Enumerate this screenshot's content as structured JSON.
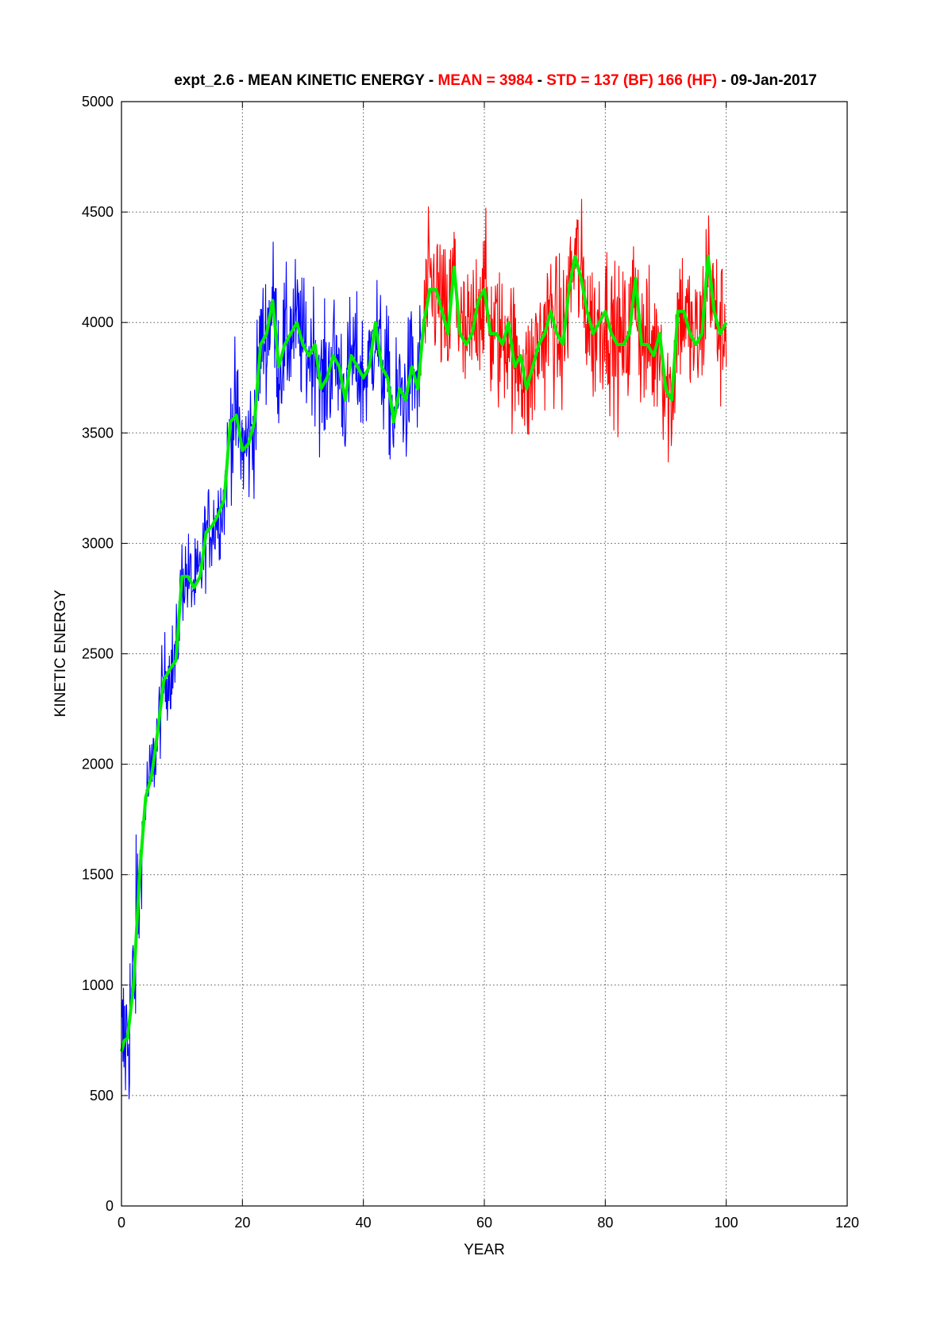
{
  "chart_data": {
    "type": "line",
    "title_parts": [
      {
        "text": "expt_2.6 - MEAN KINETIC ENERGY - ",
        "color": "#000000"
      },
      {
        "text": "MEAN =  3984",
        "color": "#ff0000"
      },
      {
        "text": " - ",
        "color": "#000000"
      },
      {
        "text": "STD =  137 (BF)  166 (HF)",
        "color": "#ff0000"
      },
      {
        "text": " - 09-Jan-2017",
        "color": "#000000"
      }
    ],
    "xlabel": "YEAR",
    "ylabel": "KINETIC ENERGY",
    "xlim": [
      0,
      120
    ],
    "ylim": [
      0,
      5000
    ],
    "xticks": [
      0,
      20,
      40,
      60,
      80,
      100,
      120
    ],
    "yticks": [
      0,
      500,
      1000,
      1500,
      2000,
      2500,
      3000,
      3500,
      4000,
      4500,
      5000
    ],
    "grid": true,
    "colors": {
      "spinup": "#0000ff",
      "analysis": "#ff0000",
      "smoothed": "#00ee00"
    },
    "series": [
      {
        "color": "#00ee00",
        "role": "smoothed",
        "x": [
          0,
          0.5,
          1,
          2,
          3,
          4,
          5,
          6,
          7,
          8,
          9,
          10,
          11,
          12,
          13,
          14,
          15,
          16,
          17,
          18,
          19,
          20,
          21,
          22,
          23,
          24,
          25,
          26,
          27,
          28,
          29,
          30,
          31,
          32,
          33,
          34,
          35,
          36,
          37,
          38,
          39,
          40,
          41,
          42,
          43,
          44,
          45,
          46,
          47,
          48,
          49,
          50,
          51,
          52,
          53,
          54,
          55,
          56,
          57,
          58,
          59,
          60,
          61,
          62,
          63,
          64,
          65,
          66,
          67,
          68,
          69,
          70,
          71,
          72,
          73,
          74,
          75,
          76,
          77,
          78,
          79,
          80,
          81,
          82,
          83,
          84,
          85,
          86,
          87,
          88,
          89,
          90,
          91,
          92,
          93,
          94,
          95,
          96,
          97,
          98,
          99,
          100
        ],
        "y": [
          700,
          750,
          760,
          1000,
          1500,
          1850,
          1950,
          2150,
          2380,
          2430,
          2470,
          2850,
          2850,
          2800,
          2850,
          3050,
          3080,
          3130,
          3200,
          3550,
          3580,
          3420,
          3450,
          3550,
          3900,
          3950,
          4100,
          3800,
          3900,
          3950,
          4000,
          3900,
          3850,
          3900,
          3700,
          3750,
          3850,
          3800,
          3650,
          3850,
          3800,
          3750,
          3800,
          4000,
          3800,
          3750,
          3550,
          3700,
          3650,
          3800,
          3700,
          4000,
          4150,
          4150,
          4050,
          3950,
          4250,
          3950,
          3900,
          3950,
          4100,
          4150,
          3950,
          3950,
          3900,
          4000,
          3800,
          3850,
          3700,
          3800,
          3900,
          3950,
          4050,
          3950,
          3900,
          4150,
          4300,
          4200,
          4050,
          3950,
          4000,
          4050,
          3950,
          3900,
          3900,
          3950,
          4200,
          3900,
          3900,
          3850,
          3950,
          3700,
          3650,
          4050,
          4050,
          3950,
          3900,
          3950,
          4300,
          4050,
          3950,
          4000
        ]
      }
    ]
  }
}
